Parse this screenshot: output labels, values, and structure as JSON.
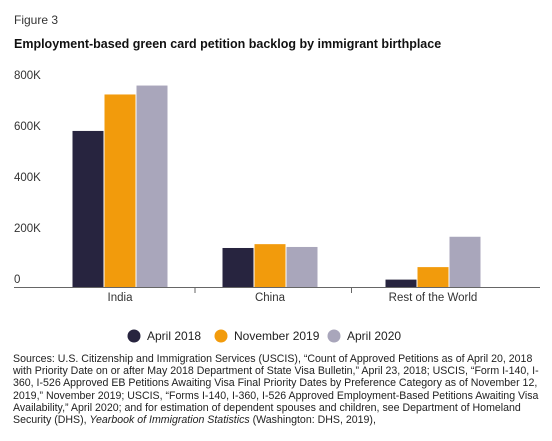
{
  "figure_label": "Figure 3",
  "title": "Employment-based green card petition backlog by immigrant birthplace",
  "colors": {
    "April 2018": "#27243f",
    "November 2019": "#f29b0c",
    "April 2020": "#a9a6bb"
  },
  "chart_data": {
    "type": "bar",
    "title": "Employment-based green card petition backlog by immigrant birthplace",
    "xlabel": "",
    "ylabel": "",
    "categories": [
      "India",
      "China",
      "Rest of the World"
    ],
    "series": [
      {
        "name": "April 2018",
        "values": [
          612000,
          153000,
          29000
        ]
      },
      {
        "name": "November 2019",
        "values": [
          755000,
          168000,
          78000
        ]
      },
      {
        "name": "April 2020",
        "values": [
          790000,
          157000,
          197000
        ]
      }
    ],
    "ylim": [
      0,
      800000
    ],
    "yticks": [
      0,
      200000,
      400000,
      600000,
      800000
    ],
    "ytick_labels": [
      "0",
      "200K",
      "400K",
      "600K",
      "800K"
    ],
    "grid": false,
    "legend": "bottom"
  },
  "sources": {
    "text_before_italic": "Sources: U.S. Citizenship and Immigration Services (USCIS), “Count of Approved Petitions as of April 20, 2018 with Priority Date on or after May 2018 Department of State Visa Bulletin,” April 23, 2018; USCIS, “Form I-140, I-360, I-526 Approved EB Petitions Awaiting Visa Final Priority Dates by Preference Category as of November 12, 2019,” November 2019; USCIS, “Forms I-140, I-360, I-526 Approved Employment-Based Petitions Awaiting Visa Availability,” April 2020; and for estimation of dependent spouses and children, see Department of Homeland Security (DHS), ",
    "italic": "Yearbook of Immigration Statistics",
    "text_after_italic": " (Washington: DHS, 2019),"
  }
}
